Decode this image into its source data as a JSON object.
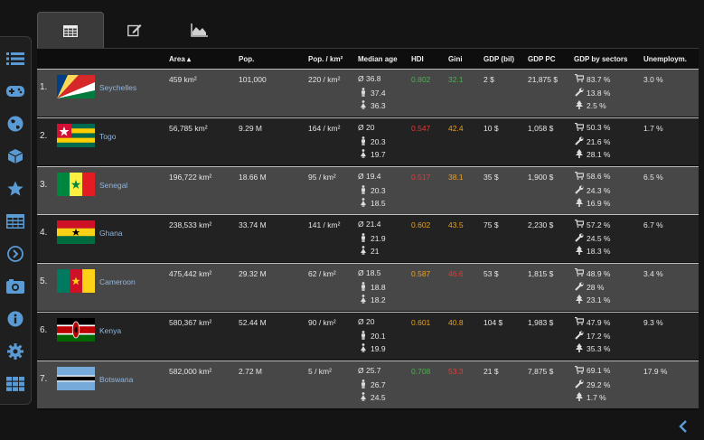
{
  "sidebar": {
    "items": [
      {
        "icon": "list-icon"
      },
      {
        "icon": "gamepad-icon"
      },
      {
        "icon": "globe-icon"
      },
      {
        "icon": "cube-icon"
      },
      {
        "icon": "star-icon"
      },
      {
        "icon": "table-icon"
      },
      {
        "icon": "chevron-circle-right-icon"
      },
      {
        "icon": "camera-icon"
      },
      {
        "icon": "info-icon"
      },
      {
        "icon": "gear-icon"
      },
      {
        "icon": "grid-icon"
      }
    ]
  },
  "tabs": [
    {
      "icon": "table-icon",
      "active": true
    },
    {
      "icon": "edit-icon",
      "active": false
    },
    {
      "icon": "area-chart-icon",
      "active": false
    }
  ],
  "header": {
    "area": "Area ▴",
    "pop": "Pop.",
    "density": "Pop. / km²",
    "median": "Median age",
    "hdi": "HDI",
    "gini": "Gini",
    "gdp": "GDP (bil)",
    "gdppc": "GDP PC",
    "sectors": "GDP by sectors",
    "unemp": "Unemploym."
  },
  "colors": {
    "hdi_high": "#4caf50",
    "hdi_mid": "#e8a020",
    "hdi_low": "#e53935",
    "link": "#8fb6dc"
  },
  "rows": [
    {
      "rank": "1.",
      "name": "Seychelles",
      "area": "459 km²",
      "pop": "101,000",
      "density": "220 / km²",
      "age": "Ø 36.8",
      "age_m": "37.4",
      "age_f": "36.3",
      "hdi": "0.802",
      "hdi_color": "#4caf50",
      "gini": "32.1",
      "gini_color": "#4caf50",
      "gdp": "2 $",
      "gdppc": "21,875 $",
      "s1": "83.7 %",
      "s2": "13.8 %",
      "s3": "2.5 %",
      "unemp": "3.0 %",
      "flag": "sc"
    },
    {
      "rank": "2.",
      "name": "Togo",
      "area": "56,785 km²",
      "pop": "9.29 M",
      "density": "164 / km²",
      "age": "Ø 20",
      "age_m": "20.3",
      "age_f": "19.7",
      "hdi": "0.547",
      "hdi_color": "#e53935",
      "gini": "42.4",
      "gini_color": "#e8a020",
      "gdp": "10 $",
      "gdppc": "1,058 $",
      "s1": "50.3 %",
      "s2": "21.6 %",
      "s3": "28.1 %",
      "unemp": "1.7 %",
      "flag": "tg"
    },
    {
      "rank": "3.",
      "name": "Senegal",
      "area": "196,722 km²",
      "pop": "18.66 M",
      "density": "95 / km²",
      "age": "Ø 19.4",
      "age_m": "20.3",
      "age_f": "18.5",
      "hdi": "0.517",
      "hdi_color": "#e53935",
      "gini": "38.1",
      "gini_color": "#e8a020",
      "gdp": "35 $",
      "gdppc": "1,900 $",
      "s1": "58.6 %",
      "s2": "24.3 %",
      "s3": "16.9 %",
      "unemp": "6.5 %",
      "flag": "sn"
    },
    {
      "rank": "4.",
      "name": "Ghana",
      "area": "238,533 km²",
      "pop": "33.74 M",
      "density": "141 / km²",
      "age": "Ø 21.4",
      "age_m": "21.9",
      "age_f": "21",
      "hdi": "0.602",
      "hdi_color": "#e8a020",
      "gini": "43.5",
      "gini_color": "#e8a020",
      "gdp": "75 $",
      "gdppc": "2,230 $",
      "s1": "57.2 %",
      "s2": "24.5 %",
      "s3": "18.3 %",
      "unemp": "6.7 %",
      "flag": "gh"
    },
    {
      "rank": "5.",
      "name": "Cameroon",
      "area": "475,442 km²",
      "pop": "29.32 M",
      "density": "62 / km²",
      "age": "Ø 18.5",
      "age_m": "18.8",
      "age_f": "18.2",
      "hdi": "0.587",
      "hdi_color": "#e8a020",
      "gini": "46.6",
      "gini_color": "#e53935",
      "gdp": "53 $",
      "gdppc": "1,815 $",
      "s1": "48.9 %",
      "s2": "28 %",
      "s3": "23.1 %",
      "unemp": "3.4 %",
      "flag": "cm"
    },
    {
      "rank": "6.",
      "name": "Kenya",
      "area": "580,367 km²",
      "pop": "52.44 M",
      "density": "90 / km²",
      "age": "Ø 20",
      "age_m": "20.1",
      "age_f": "19.9",
      "hdi": "0.601",
      "hdi_color": "#e8a020",
      "gini": "40.8",
      "gini_color": "#e8a020",
      "gdp": "104 $",
      "gdppc": "1,983 $",
      "s1": "47.9 %",
      "s2": "17.2 %",
      "s3": "35.3 %",
      "unemp": "9.3 %",
      "flag": "ke"
    },
    {
      "rank": "7.",
      "name": "Botswana",
      "area": "582,000 km²",
      "pop": "2.72 M",
      "density": "5 / km²",
      "age": "Ø 25.7",
      "age_m": "26.7",
      "age_f": "24.5",
      "hdi": "0.708",
      "hdi_color": "#4caf50",
      "gini": "53.3",
      "gini_color": "#e53935",
      "gdp": "21 $",
      "gdppc": "7,875 $",
      "s1": "69.1 %",
      "s2": "29.2 %",
      "s3": "1.7 %",
      "unemp": "17.9 %",
      "flag": "bw"
    }
  ]
}
